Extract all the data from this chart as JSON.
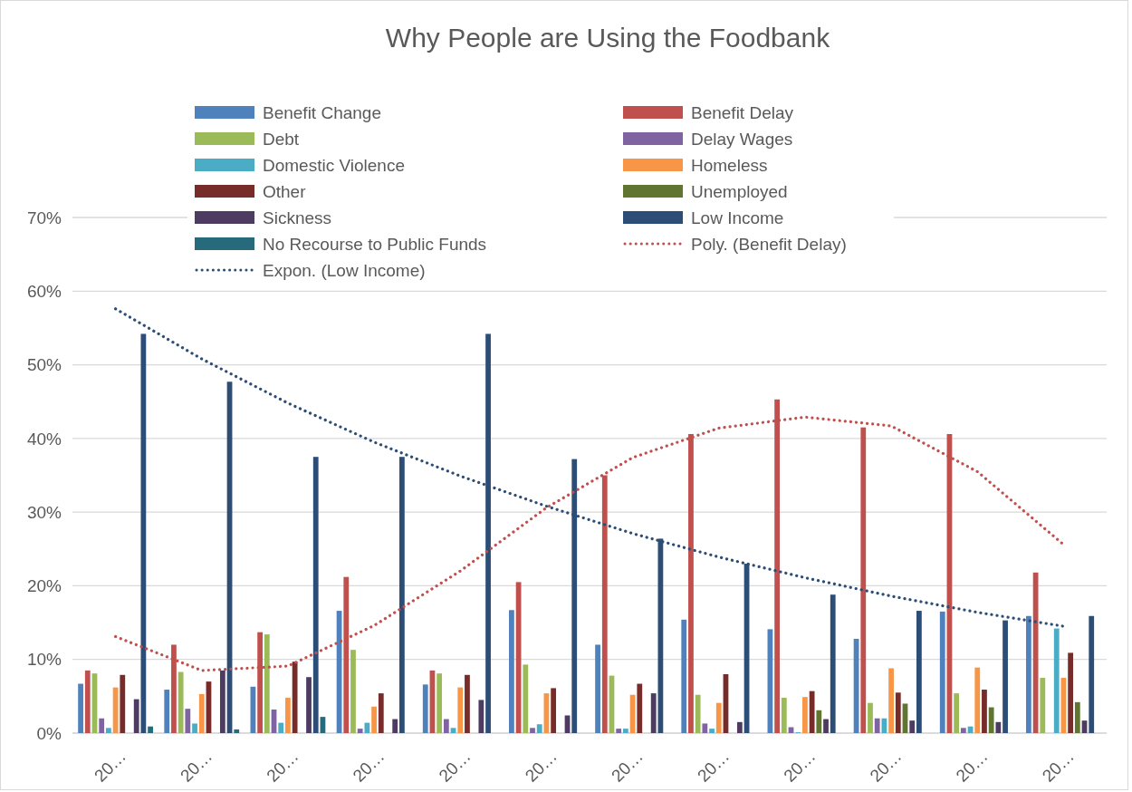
{
  "chart_data": {
    "type": "bar",
    "title": "Why People are Using the Foodbank",
    "categories": [
      "20…",
      "20…",
      "20…",
      "20…",
      "20…",
      "20…",
      "20…",
      "20…",
      "20…",
      "20…",
      "20…",
      "20…"
    ],
    "ylim": [
      0,
      70
    ],
    "yticks": [
      {
        "value": 0,
        "label": "0%"
      },
      {
        "value": 10,
        "label": "10%"
      },
      {
        "value": 20,
        "label": "20%"
      },
      {
        "value": 30,
        "label": "30%"
      },
      {
        "value": 40,
        "label": "40%"
      },
      {
        "value": 50,
        "label": "50%"
      },
      {
        "value": 60,
        "label": "60%"
      },
      {
        "value": 70,
        "label": "70%"
      }
    ],
    "grid": "y",
    "legend": "top",
    "series": [
      {
        "name": "Benefit Change",
        "color": "#4f81bd",
        "values": [
          6.7,
          5.9,
          6.3,
          16.6,
          6.6,
          16.7,
          12.0,
          15.4,
          14.1,
          12.8,
          16.5,
          15.9
        ]
      },
      {
        "name": "Benefit Delay",
        "color": "#c0504d",
        "values": [
          8.5,
          12.0,
          13.7,
          21.2,
          8.5,
          20.5,
          35.0,
          40.6,
          45.3,
          41.5,
          40.6,
          21.8
        ]
      },
      {
        "name": "Debt",
        "color": "#9bbb59",
        "values": [
          8.1,
          8.3,
          13.4,
          11.3,
          8.1,
          9.3,
          7.8,
          5.2,
          4.8,
          4.1,
          5.4,
          7.5
        ]
      },
      {
        "name": "Delay Wages",
        "color": "#8064a2",
        "values": [
          2.0,
          3.3,
          3.2,
          0.6,
          1.9,
          0.7,
          0.6,
          1.3,
          0.8,
          2.0,
          0.7,
          null
        ]
      },
      {
        "name": "Domestic Violence",
        "color": "#4bacc6",
        "values": [
          0.7,
          1.3,
          1.4,
          1.4,
          0.7,
          1.2,
          0.6,
          0.6,
          0.1,
          2.0,
          0.9,
          14.2
        ]
      },
      {
        "name": "Homeless",
        "color": "#f79646",
        "values": [
          6.2,
          5.3,
          4.8,
          3.6,
          6.2,
          5.4,
          5.2,
          4.1,
          4.9,
          8.8,
          8.9,
          7.5
        ]
      },
      {
        "name": "Other",
        "color": "#772c2a",
        "values": [
          7.9,
          7.0,
          9.7,
          5.4,
          7.9,
          6.1,
          6.7,
          8.0,
          5.7,
          5.5,
          5.9,
          10.9
        ]
      },
      {
        "name": "Unemployed",
        "color": "#5f7530",
        "values": [
          null,
          null,
          null,
          null,
          null,
          null,
          null,
          null,
          3.1,
          4.0,
          3.5,
          4.2
        ]
      },
      {
        "name": "Sickness",
        "color": "#4d3b62",
        "values": [
          4.6,
          8.5,
          7.6,
          1.9,
          4.5,
          2.4,
          5.4,
          1.5,
          1.9,
          1.7,
          1.5,
          1.7
        ]
      },
      {
        "name": "Low Income",
        "color": "#2c4d75",
        "values": [
          54.2,
          47.7,
          37.5,
          37.5,
          54.2,
          37.2,
          26.4,
          23.0,
          18.8,
          16.6,
          15.3,
          15.9
        ]
      },
      {
        "name": "No Recourse to Public Funds",
        "color": "#276a7c",
        "values": [
          0.9,
          0.5,
          2.2,
          null,
          null,
          null,
          null,
          null,
          null,
          null,
          null,
          null
        ]
      },
      {
        "name": "Poly. (Benefit Delay)",
        "type": "line",
        "line_style": "dotted",
        "color": "#c0504d",
        "values": [
          13.1,
          8.5,
          9.1,
          14.6,
          22.0,
          30.6,
          37.4,
          41.4,
          42.9,
          41.7,
          35.5,
          25.6
        ]
      },
      {
        "name": "Expon. (Low Income)",
        "type": "line",
        "line_style": "dotted",
        "color": "#2c4d75",
        "values": [
          57.6,
          50.8,
          44.8,
          39.5,
          34.9,
          30.8,
          27.1,
          23.9,
          21.1,
          18.6,
          16.4,
          14.5
        ]
      }
    ]
  }
}
